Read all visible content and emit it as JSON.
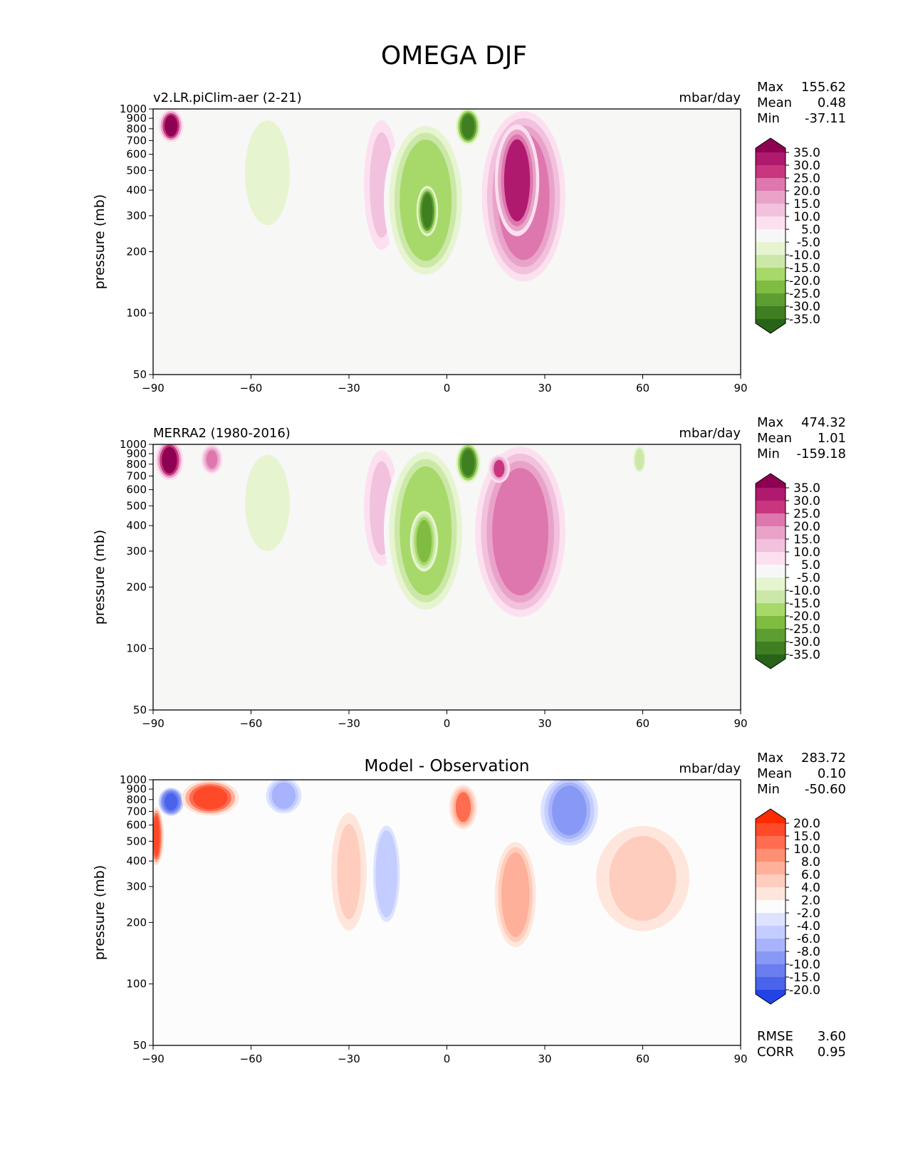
{
  "figure": {
    "title": "OMEGA DJF"
  },
  "chart_data": [
    {
      "type": "heatmap",
      "title": "v2.LR.piClim-aer (2-21)",
      "units": "mbar/day",
      "ylabel": "pressure (mb)",
      "xlim": [
        -90,
        90
      ],
      "ylim": [
        1000,
        50
      ],
      "x_ticks": [
        "−90",
        "−60",
        "−30",
        "0",
        "30",
        "60",
        "90"
      ],
      "y_ticks": [
        "50",
        "100",
        "200",
        "300",
        "400",
        "500",
        "600",
        "700",
        "800",
        "900",
        "1000"
      ],
      "stats": {
        "max_label": "Max",
        "max": "155.62",
        "mean_label": "Mean",
        "mean": "0.48",
        "min_label": "Min",
        "min": "-37.11"
      },
      "colorbar": {
        "levels": [
          "35.0",
          "30.0",
          "25.0",
          "20.0",
          "15.0",
          "10.0",
          "5.0",
          "-5.0",
          "-10.0",
          "-15.0",
          "-20.0",
          "-25.0",
          "-30.0",
          "-35.0"
        ],
        "colors": [
          "#8e0152",
          "#b01a6e",
          "#c8367f",
          "#de77ae",
          "#e9a3c9",
          "#f1c1dd",
          "#fde0ef",
          "#f7f7f7",
          "#e6f5d0",
          "#cce8a8",
          "#a6d96a",
          "#7fbc41",
          "#5d9e32",
          "#3f7f22",
          "#276419"
        ]
      },
      "features": [
        {
          "lon": [
            -87,
            -82
          ],
          "p": [
            720,
            950
          ],
          "value": 35
        },
        {
          "lon": [
            -25,
            -15
          ],
          "p": [
            200,
            900
          ],
          "value": 10
        },
        {
          "lon": [
            -18,
            5
          ],
          "p": [
            150,
            850
          ],
          "value": -20
        },
        {
          "lon": [
            -8,
            -4
          ],
          "p": [
            250,
            400
          ],
          "value": -35
        },
        {
          "lon": [
            4,
            9
          ],
          "p": [
            700,
            960
          ],
          "value": -35
        },
        {
          "lon": [
            12,
            35
          ],
          "p": [
            150,
            930
          ],
          "value": 20
        },
        {
          "lon": [
            16,
            27
          ],
          "p": [
            250,
            800
          ],
          "value": 30
        },
        {
          "lon": [
            -63,
            -47
          ],
          "p": [
            250,
            950
          ],
          "value": -10
        }
      ]
    },
    {
      "type": "heatmap",
      "title": "MERRA2 (1980-2016)",
      "units": "mbar/day",
      "ylabel": "pressure (mb)",
      "xlim": [
        -90,
        90
      ],
      "ylim": [
        1000,
        50
      ],
      "x_ticks": [
        "−90",
        "−60",
        "−30",
        "0",
        "30",
        "60",
        "90"
      ],
      "y_ticks": [
        "50",
        "100",
        "200",
        "300",
        "400",
        "500",
        "600",
        "700",
        "800",
        "900",
        "1000"
      ],
      "stats": {
        "max_label": "Max",
        "max": "474.32",
        "mean_label": "Mean",
        "mean": "1.01",
        "min_label": "Min",
        "min": "-159.18"
      },
      "colorbar": {
        "levels": [
          "35.0",
          "30.0",
          "25.0",
          "20.0",
          "15.0",
          "10.0",
          "5.0",
          "-5.0",
          "-10.0",
          "-15.0",
          "-20.0",
          "-25.0",
          "-30.0",
          "-35.0"
        ],
        "colors": [
          "#8e0152",
          "#b01a6e",
          "#c8367f",
          "#de77ae",
          "#e9a3c9",
          "#f1c1dd",
          "#fde0ef",
          "#f7f7f7",
          "#e6f5d0",
          "#cce8a8",
          "#a6d96a",
          "#7fbc41",
          "#5d9e32",
          "#3f7f22",
          "#276419"
        ]
      },
      "features": [
        {
          "lon": [
            -88,
            -82
          ],
          "p": [
            700,
            1000
          ],
          "value": 35
        },
        {
          "lon": [
            -74,
            -70
          ],
          "p": [
            750,
            950
          ],
          "value": 20
        },
        {
          "lon": [
            -25,
            -15
          ],
          "p": [
            250,
            950
          ],
          "value": 10
        },
        {
          "lon": [
            -18,
            5
          ],
          "p": [
            150,
            950
          ],
          "value": -20
        },
        {
          "lon": [
            -10,
            -4
          ],
          "p": [
            250,
            450
          ],
          "value": -25
        },
        {
          "lon": [
            4,
            9
          ],
          "p": [
            680,
            970
          ],
          "value": -35
        },
        {
          "lon": [
            10,
            35
          ],
          "p": [
            150,
            930
          ],
          "value": 20
        },
        {
          "lon": [
            14,
            18
          ],
          "p": [
            680,
            850
          ],
          "value": 25
        },
        {
          "lon": [
            -63,
            -47
          ],
          "p": [
            280,
            950
          ],
          "value": -10
        },
        {
          "lon": [
            58,
            60
          ],
          "p": [
            750,
            950
          ],
          "value": -15
        }
      ]
    },
    {
      "type": "heatmap",
      "title": "Model - Observation",
      "units": "mbar/day",
      "ylabel": "pressure (mb)",
      "xlim": [
        -90,
        90
      ],
      "ylim": [
        1000,
        50
      ],
      "x_ticks": [
        "−90",
        "−60",
        "−30",
        "0",
        "30",
        "60",
        "90"
      ],
      "y_ticks": [
        "50",
        "100",
        "200",
        "300",
        "400",
        "500",
        "600",
        "700",
        "800",
        "900",
        "1000"
      ],
      "stats": {
        "max_label": "Max",
        "max": "283.72",
        "mean_label": "Mean",
        "mean": "0.10",
        "min_label": "Min",
        "min": "-50.60"
      },
      "metrics": {
        "rmse_label": "RMSE",
        "rmse": "3.60",
        "corr_label": "CORR",
        "corr": "0.95"
      },
      "colorbar": {
        "levels": [
          "20.0",
          "15.0",
          "10.0",
          "8.0",
          "6.0",
          "4.0",
          "2.0",
          "-2.0",
          "-4.0",
          "-6.0",
          "-8.0",
          "-10.0",
          "-15.0",
          "-20.0"
        ],
        "colors": [
          "#ff2a00",
          "#ff4a2a",
          "#ff6d50",
          "#ff8f72",
          "#ffb09a",
          "#ffcdbd",
          "#ffe6dc",
          "#fcfcfc",
          "#dde3ff",
          "#c4cdff",
          "#a7b4fb",
          "#8899f5",
          "#6a7ef0",
          "#4a63eb",
          "#2244e6"
        ]
      },
      "features": [
        {
          "lon": [
            -90,
            -88
          ],
          "p": [
            400,
            700
          ],
          "value": 15
        },
        {
          "lon": [
            -87,
            -82
          ],
          "p": [
            700,
            870
          ],
          "value": -20
        },
        {
          "lon": [
            -80,
            -65
          ],
          "p": [
            700,
            950
          ],
          "value": 15
        },
        {
          "lon": [
            -35,
            -25
          ],
          "p": [
            180,
            700
          ],
          "value": 4
        },
        {
          "lon": [
            -22,
            -15
          ],
          "p": [
            200,
            600
          ],
          "value": -6
        },
        {
          "lon": [
            2,
            8
          ],
          "p": [
            600,
            900
          ],
          "value": 10
        },
        {
          "lon": [
            15,
            27
          ],
          "p": [
            150,
            500
          ],
          "value": 6
        },
        {
          "lon": [
            30,
            45
          ],
          "p": [
            500,
            1000
          ],
          "value": -10
        },
        {
          "lon": [
            45,
            75
          ],
          "p": [
            180,
            600
          ],
          "value": 4
        },
        {
          "lon": [
            -55,
            -45
          ],
          "p": [
            700,
            1000
          ],
          "value": -8
        }
      ]
    }
  ]
}
